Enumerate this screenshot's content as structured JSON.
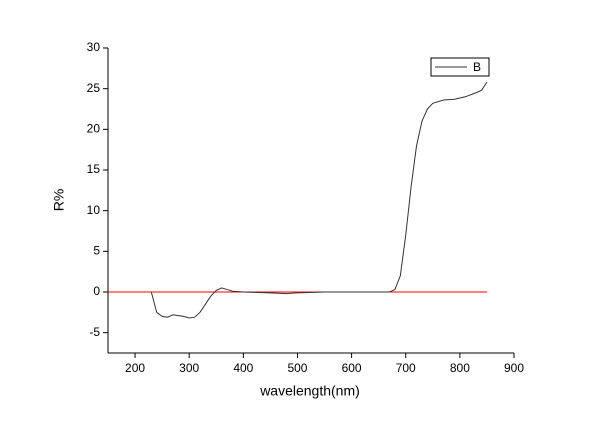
{
  "chart_data": {
    "type": "line",
    "x_label": "wavelength(nm)",
    "y_label": "R%",
    "x": [
      230,
      240,
      250,
      260,
      270,
      280,
      290,
      300,
      310,
      320,
      330,
      340,
      350,
      360,
      370,
      380,
      400,
      450,
      480,
      500,
      550,
      600,
      650,
      670,
      680,
      690,
      700,
      710,
      720,
      730,
      740,
      750,
      770,
      790,
      810,
      830,
      840,
      850
    ],
    "series": [
      {
        "name": "B",
        "color": "#333333",
        "values": [
          0,
          -2.5,
          -3.0,
          -3.1,
          -2.8,
          -2.9,
          -3.0,
          -3.2,
          -3.1,
          -2.5,
          -1.5,
          -0.5,
          0.2,
          0.5,
          0.3,
          0.1,
          0,
          -0.1,
          -0.2,
          -0.1,
          0,
          0,
          0,
          0,
          0.3,
          2,
          7,
          13,
          18,
          21,
          22.5,
          23.2,
          23.6,
          23.7,
          24,
          24.5,
          24.8,
          25.8
        ]
      }
    ],
    "reference_line": {
      "y": 0,
      "x": [
        150,
        850
      ],
      "color": "#ff0000"
    },
    "xlim": [
      150,
      900
    ],
    "xticks": [
      200,
      300,
      400,
      500,
      600,
      700,
      800,
      900
    ],
    "ylim": [
      -7.5,
      30
    ],
    "yticks": [
      -5,
      0,
      5,
      10,
      15,
      20,
      25,
      30
    ],
    "legend": "top-right"
  }
}
